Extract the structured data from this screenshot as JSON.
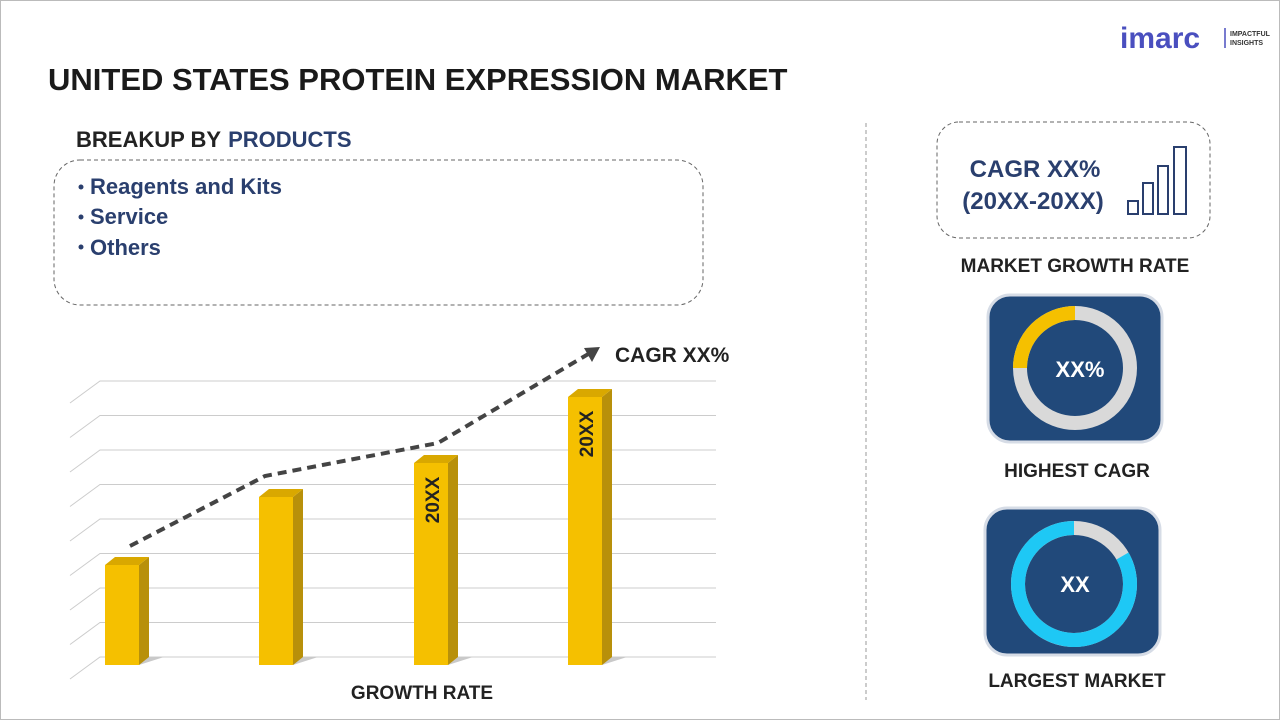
{
  "logo": {
    "name": "imarc",
    "tagline_1": "IMPACTFUL",
    "tagline_2": "INSIGHTS"
  },
  "header": {
    "title": "UNITED STATES PROTEIN EXPRESSION MARKET"
  },
  "breakup": {
    "label": "BREAKUP BY",
    "highlight": "PRODUCTS",
    "items": [
      "Reagents and Kits",
      "Service",
      "Others"
    ]
  },
  "growth_chart": {
    "cagr": "CAGR XX%",
    "bar_labels": [
      "20XX",
      "20XX"
    ],
    "axis_label": "GROWTH RATE"
  },
  "cards": {
    "growth": {
      "value": "CAGR XX%",
      "period": "(20XX-20XX)",
      "label": "MARKET GROWTH RATE"
    },
    "highest": {
      "value": "XX%",
      "label": "HIGHEST CAGR"
    },
    "largest": {
      "value": "XX",
      "label": "LARGEST MARKET"
    }
  }
}
